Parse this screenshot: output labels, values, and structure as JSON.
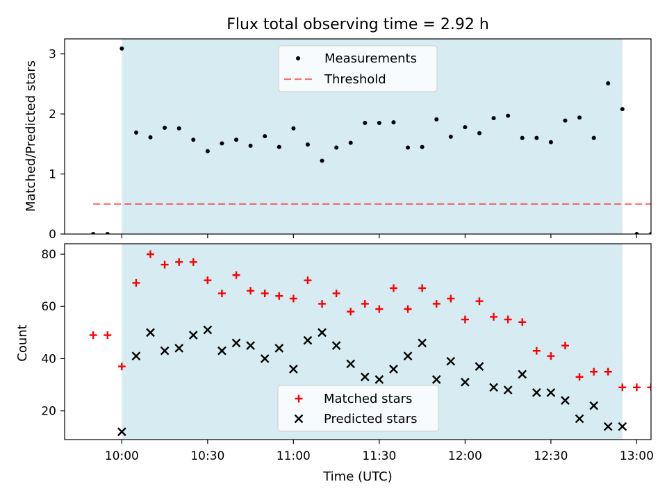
{
  "title": "Flux total observing time = 2.92 h",
  "colors": {
    "band": "#add8e6",
    "threshold": "#ff0000",
    "measurement": "#000000",
    "matched": "#ff0000",
    "predicted": "#000000"
  },
  "chart_data": [
    {
      "type": "scatter",
      "ylabel": "Matched/Predicted stars",
      "xlim": [
        "09:40",
        "13:05"
      ],
      "ylim": [
        0,
        3.25
      ],
      "yticks": [
        0,
        1,
        2,
        3
      ],
      "observing_window": [
        "10:00",
        "12:55"
      ],
      "legend": {
        "position": "top-center",
        "measurements": "Measurements",
        "threshold": "Threshold"
      },
      "threshold": {
        "value": 0.5,
        "x": [
          "09:50",
          "13:05"
        ]
      },
      "series": [
        {
          "name": "Measurements",
          "points": [
            [
              "09:50",
              0
            ],
            [
              "09:55",
              0
            ],
            [
              "10:00",
              3.09
            ],
            [
              "10:05",
              1.69
            ],
            [
              "10:10",
              1.61
            ],
            [
              "10:15",
              1.77
            ],
            [
              "10:20",
              1.76
            ],
            [
              "10:25",
              1.57
            ],
            [
              "10:30",
              1.38
            ],
            [
              "10:35",
              1.51
            ],
            [
              "10:40",
              1.57
            ],
            [
              "10:45",
              1.47
            ],
            [
              "10:50",
              1.63
            ],
            [
              "10:55",
              1.45
            ],
            [
              "11:00",
              1.76
            ],
            [
              "11:05",
              1.49
            ],
            [
              "11:10",
              1.22
            ],
            [
              "11:15",
              1.44
            ],
            [
              "11:20",
              1.52
            ],
            [
              "11:25",
              1.85
            ],
            [
              "11:30",
              1.85
            ],
            [
              "11:35",
              1.86
            ],
            [
              "11:40",
              1.44
            ],
            [
              "11:45",
              1.45
            ],
            [
              "11:50",
              1.91
            ],
            [
              "11:55",
              1.62
            ],
            [
              "12:00",
              1.78
            ],
            [
              "12:05",
              1.68
            ],
            [
              "12:10",
              1.93
            ],
            [
              "12:15",
              1.97
            ],
            [
              "12:20",
              1.6
            ],
            [
              "12:25",
              1.6
            ],
            [
              "12:30",
              1.53
            ],
            [
              "12:35",
              1.89
            ],
            [
              "12:40",
              1.94
            ],
            [
              "12:45",
              1.6
            ],
            [
              "12:50",
              2.51
            ],
            [
              "12:55",
              2.08
            ],
            [
              "13:00",
              0
            ],
            [
              "13:05",
              0
            ]
          ]
        }
      ]
    },
    {
      "type": "scatter",
      "xlabel": "Time (UTC)",
      "ylabel": "Count",
      "xlim": [
        "09:40",
        "13:05"
      ],
      "ylim": [
        9,
        84
      ],
      "yticks": [
        20,
        40,
        60,
        80
      ],
      "xticks": [
        "10:00",
        "10:30",
        "11:00",
        "11:30",
        "12:00",
        "12:30",
        "13:00"
      ],
      "observing_window": [
        "10:00",
        "12:55"
      ],
      "legend": {
        "position": "bottom-center",
        "matched": "Matched stars",
        "predicted": "Predicted stars"
      },
      "series": [
        {
          "name": "Matched stars",
          "points": [
            [
              "09:50",
              49
            ],
            [
              "09:55",
              49
            ],
            [
              "10:00",
              37
            ],
            [
              "10:05",
              69
            ],
            [
              "10:10",
              80
            ],
            [
              "10:15",
              76
            ],
            [
              "10:20",
              77
            ],
            [
              "10:25",
              77
            ],
            [
              "10:30",
              70
            ],
            [
              "10:35",
              65
            ],
            [
              "10:40",
              72
            ],
            [
              "10:45",
              66
            ],
            [
              "10:50",
              65
            ],
            [
              "10:55",
              64
            ],
            [
              "11:00",
              63
            ],
            [
              "11:05",
              70
            ],
            [
              "11:10",
              61
            ],
            [
              "11:15",
              65
            ],
            [
              "11:20",
              58
            ],
            [
              "11:25",
              61
            ],
            [
              "11:30",
              59
            ],
            [
              "11:35",
              67
            ],
            [
              "11:40",
              59
            ],
            [
              "11:45",
              67
            ],
            [
              "11:50",
              61
            ],
            [
              "11:55",
              63
            ],
            [
              "12:00",
              55
            ],
            [
              "12:05",
              62
            ],
            [
              "12:10",
              56
            ],
            [
              "12:15",
              55
            ],
            [
              "12:20",
              54
            ],
            [
              "12:25",
              43
            ],
            [
              "12:30",
              41
            ],
            [
              "12:35",
              45
            ],
            [
              "12:40",
              33
            ],
            [
              "12:45",
              35
            ],
            [
              "12:50",
              35
            ],
            [
              "12:55",
              29
            ],
            [
              "13:00",
              29
            ],
            [
              "13:05",
              29
            ]
          ]
        },
        {
          "name": "Predicted stars",
          "points": [
            [
              "10:00",
              12
            ],
            [
              "10:05",
              41
            ],
            [
              "10:10",
              50
            ],
            [
              "10:15",
              43
            ],
            [
              "10:20",
              44
            ],
            [
              "10:25",
              49
            ],
            [
              "10:30",
              51
            ],
            [
              "10:35",
              43
            ],
            [
              "10:40",
              46
            ],
            [
              "10:45",
              45
            ],
            [
              "10:50",
              40
            ],
            [
              "10:55",
              44
            ],
            [
              "11:00",
              36
            ],
            [
              "11:05",
              47
            ],
            [
              "11:10",
              50
            ],
            [
              "11:15",
              45
            ],
            [
              "11:20",
              38
            ],
            [
              "11:25",
              33
            ],
            [
              "11:30",
              32
            ],
            [
              "11:35",
              36
            ],
            [
              "11:40",
              41
            ],
            [
              "11:45",
              46
            ],
            [
              "11:50",
              32
            ],
            [
              "11:55",
              39
            ],
            [
              "12:00",
              31
            ],
            [
              "12:05",
              37
            ],
            [
              "12:10",
              29
            ],
            [
              "12:15",
              28
            ],
            [
              "12:20",
              34
            ],
            [
              "12:25",
              27
            ],
            [
              "12:30",
              27
            ],
            [
              "12:35",
              24
            ],
            [
              "12:40",
              17
            ],
            [
              "12:45",
              22
            ],
            [
              "12:50",
              14
            ],
            [
              "12:55",
              14
            ]
          ]
        }
      ]
    }
  ]
}
